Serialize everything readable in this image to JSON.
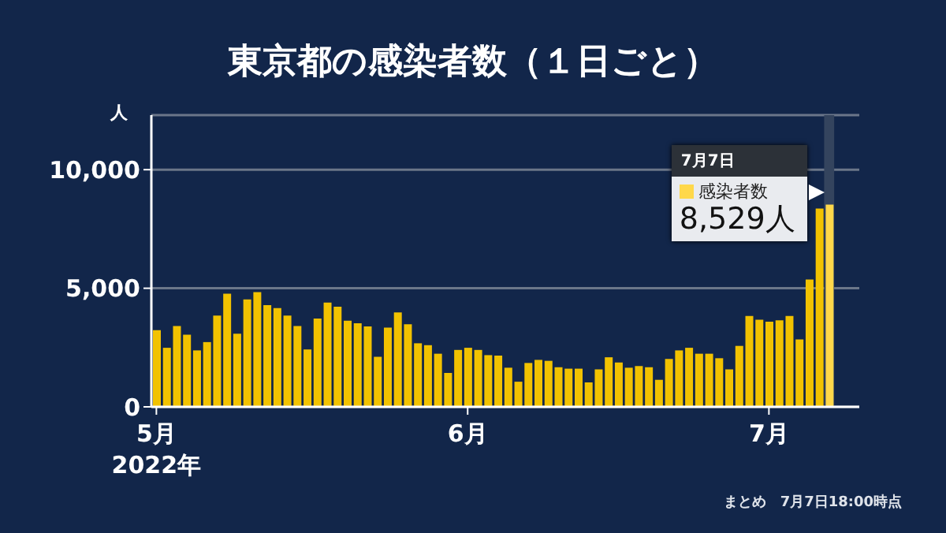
{
  "chart_data": {
    "type": "bar",
    "title": "東京都の感染者数（１日ごと）",
    "ylabel": "人",
    "x": [
      "2022-05-01",
      "2022-05-02",
      "2022-05-03",
      "2022-05-04",
      "2022-05-05",
      "2022-05-06",
      "2022-05-07",
      "2022-05-08",
      "2022-05-09",
      "2022-05-10",
      "2022-05-11",
      "2022-05-12",
      "2022-05-13",
      "2022-05-14",
      "2022-05-15",
      "2022-05-16",
      "2022-05-17",
      "2022-05-18",
      "2022-05-19",
      "2022-05-20",
      "2022-05-21",
      "2022-05-22",
      "2022-05-23",
      "2022-05-24",
      "2022-05-25",
      "2022-05-26",
      "2022-05-27",
      "2022-05-28",
      "2022-05-29",
      "2022-05-30",
      "2022-05-31",
      "2022-06-01",
      "2022-06-02",
      "2022-06-03",
      "2022-06-04",
      "2022-06-05",
      "2022-06-06",
      "2022-06-07",
      "2022-06-08",
      "2022-06-09",
      "2022-06-10",
      "2022-06-11",
      "2022-06-12",
      "2022-06-13",
      "2022-06-14",
      "2022-06-15",
      "2022-06-16",
      "2022-06-17",
      "2022-06-18",
      "2022-06-19",
      "2022-06-20",
      "2022-06-21",
      "2022-06-22",
      "2022-06-23",
      "2022-06-24",
      "2022-06-25",
      "2022-06-26",
      "2022-06-27",
      "2022-06-28",
      "2022-06-29",
      "2022-06-30",
      "2022-07-01",
      "2022-07-02",
      "2022-07-03",
      "2022-07-04",
      "2022-07-05",
      "2022-07-06",
      "2022-07-07"
    ],
    "values": [
      3230,
      2490,
      3410,
      3040,
      2380,
      2730,
      3850,
      4770,
      3080,
      4530,
      4840,
      4290,
      4160,
      3850,
      3410,
      2420,
      3720,
      4400,
      4220,
      3630,
      3520,
      3390,
      2110,
      3340,
      3980,
      3480,
      2680,
      2600,
      2240,
      1430,
      2400,
      2490,
      2400,
      2180,
      2160,
      1650,
      1060,
      1850,
      1980,
      1940,
      1670,
      1610,
      1610,
      1030,
      1580,
      2090,
      1870,
      1650,
      1720,
      1670,
      1140,
      2020,
      2380,
      2490,
      2240,
      2240,
      2050,
      1580,
      2570,
      3830,
      3670,
      3590,
      3650,
      3830,
      2840,
      5370,
      8360,
      8529
    ],
    "colors": [
      "#f2c200",
      "#f2c200",
      "#f2c200",
      "#f2c200",
      "#f2c200",
      "#f2c200",
      "#f2c200",
      "#f2c200",
      "#f2c200",
      "#f2c200",
      "#f2c200",
      "#f2c200",
      "#f2c200",
      "#f2c200",
      "#f2c200",
      "#f2c200",
      "#f2c200",
      "#f2c200",
      "#f2c200",
      "#f2c200",
      "#f2c200",
      "#f2c200",
      "#f2c200",
      "#f2c200",
      "#f2c200",
      "#f2c200",
      "#f2c200",
      "#f2c200",
      "#f2c200",
      "#f2c200",
      "#f2c200",
      "#f2c200",
      "#f2c200",
      "#f2c200",
      "#f2c200",
      "#f2c200",
      "#f2c200",
      "#f2c200",
      "#f2c200",
      "#f2c200",
      "#f2c200",
      "#f2c200",
      "#f2c200",
      "#f2c200",
      "#f2c200",
      "#f2c200",
      "#f2c200",
      "#f2c200",
      "#f2c200",
      "#f2c200",
      "#f2c200",
      "#f2c200",
      "#f2c200",
      "#f2c200",
      "#f2c200",
      "#f2c200",
      "#f2c200",
      "#f2c200",
      "#f2c200",
      "#f2c200",
      "#f2c200",
      "#f2c200",
      "#f2c200",
      "#f2c200",
      "#f2c200",
      "#f2c200",
      "#f2c200",
      "#ffd84a"
    ],
    "xlim": [
      "2022-04-30T12:00",
      "2022-07-10T00:00"
    ],
    "xticks": [
      {
        "value": "2022-05-01",
        "label": "5月\n2022年"
      },
      {
        "value": "2022-06-01",
        "label": "6月"
      },
      {
        "value": "2022-07-01",
        "label": "7月"
      }
    ],
    "ylim": [
      0,
      12300
    ],
    "yticks": [
      {
        "value": 0,
        "label": "0"
      },
      {
        "value": 5000,
        "label": "5,000"
      },
      {
        "value": 10000,
        "label": "10,000"
      }
    ],
    "grid": "y",
    "bands": [
      {
        "axis": "x",
        "from": "2022-07-06T12:00",
        "to": "2022-07-07T12:00",
        "color": "#34445e"
      }
    ],
    "annotations": [
      "7月7日",
      "感染者数",
      {
        "text": "8,529人",
        "x": "2022-07-07",
        "y": 8529
      },
      "まとめ　7月7日18:00時点"
    ]
  }
}
